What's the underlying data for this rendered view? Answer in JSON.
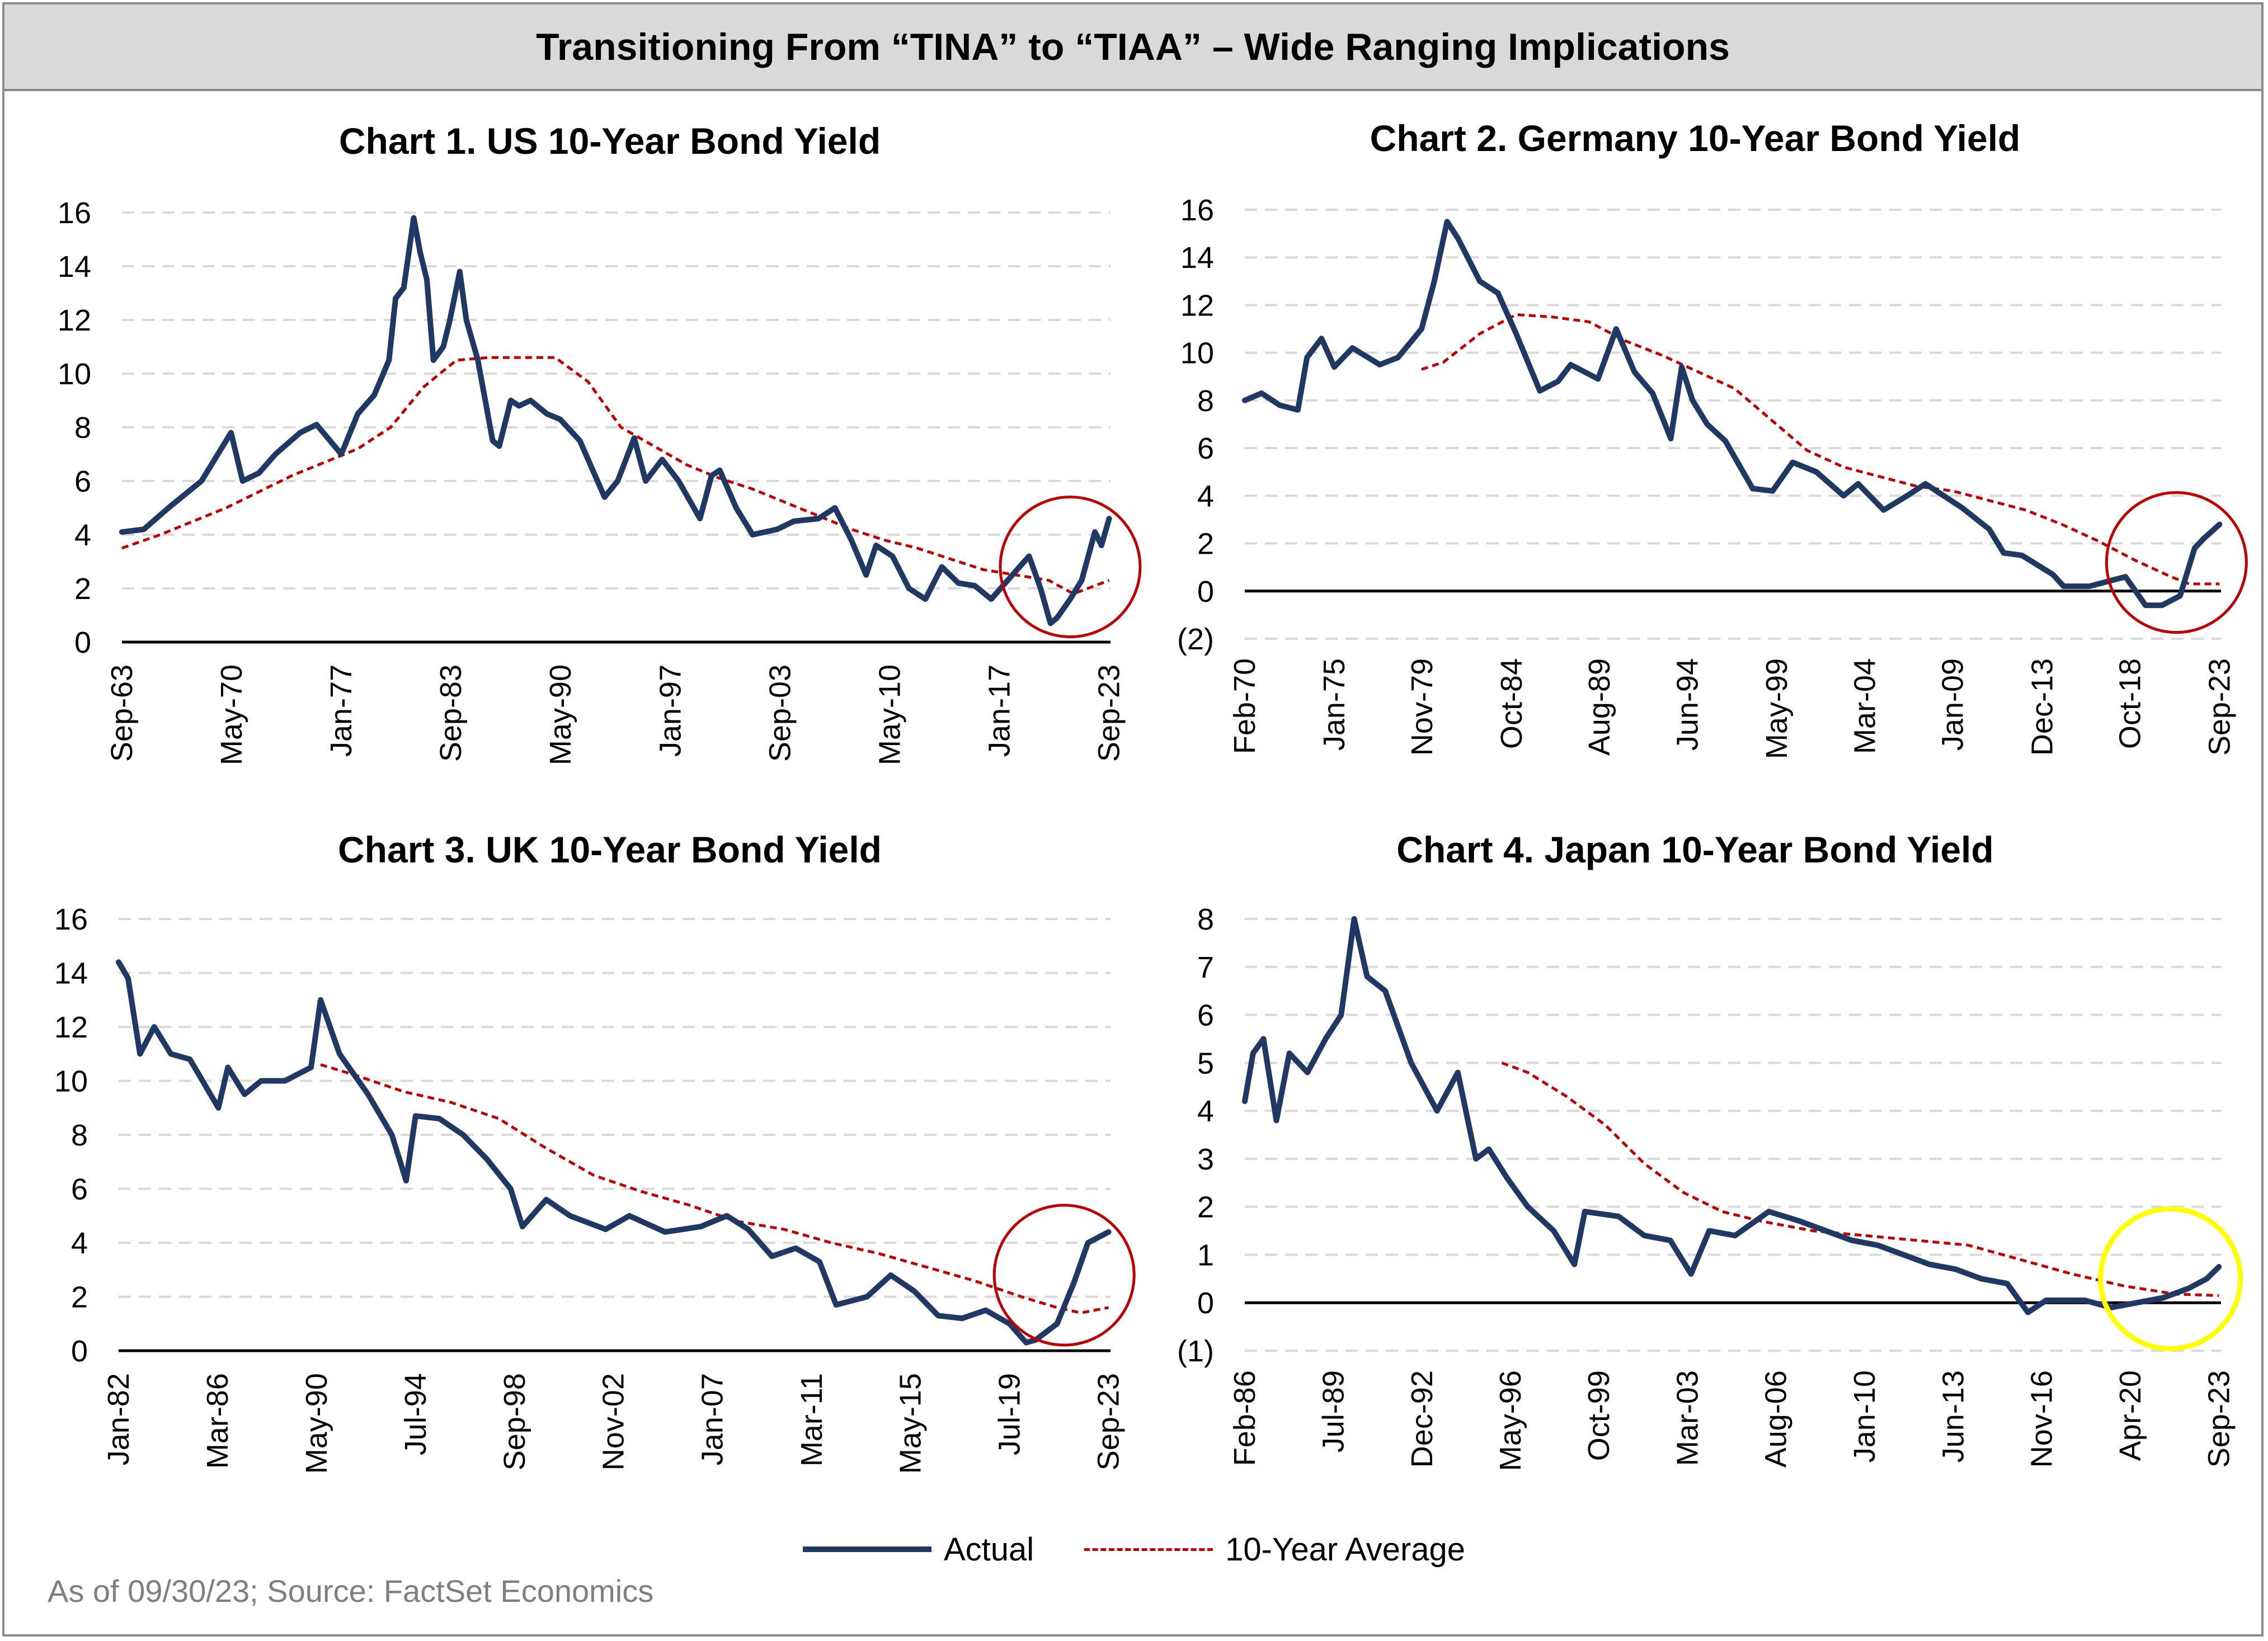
{
  "banner_title": "Transitioning From “TINA” to “TIAA” – Wide Ranging Implications",
  "legend": {
    "actual_label": "Actual",
    "average_label": "10-Year Average"
  },
  "footnote": "As of 09/30/23; Source: FactSet Economics",
  "colors": {
    "actual": "#1f3864",
    "average": "#c00000",
    "gridline": "#d9d9d9",
    "zero_line": "#000000",
    "highlight_red": "#c00000",
    "highlight_yellow": "#ffff00"
  },
  "chart_data": [
    {
      "id": "us",
      "type": "line",
      "title": "Chart 1. US 10-Year Bond Yield",
      "ylim": [
        0,
        16
      ],
      "yticks": [
        "0",
        "2",
        "4",
        "6",
        "8",
        "10",
        "12",
        "14",
        "16"
      ],
      "ytick_values": [
        0,
        2,
        4,
        6,
        8,
        10,
        12,
        14,
        16
      ],
      "xlim": [
        1963.67,
        2023.75
      ],
      "xtick_labels": [
        "Sep-63",
        "May-70",
        "Jan-77",
        "Sep-83",
        "May-90",
        "Jan-97",
        "Sep-03",
        "May-10",
        "Jan-17",
        "Sep-23"
      ],
      "xtick_values": [
        1963.67,
        1970.33,
        1977.0,
        1983.67,
        1990.33,
        1997.0,
        2003.67,
        2010.33,
        2017.0,
        2023.67
      ],
      "grid": true,
      "highlight": {
        "color": "red",
        "center": [
          2021.3,
          2.8
        ]
      },
      "series": [
        {
          "name": "Actual",
          "x": [
            1963.67,
            1965,
            1966.5,
            1967.5,
            1968.5,
            1969.5,
            1970.3,
            1971,
            1972,
            1973,
            1974.5,
            1975.5,
            1977,
            1978,
            1979,
            1979.9,
            1980.3,
            1980.8,
            1981.4,
            1981.8,
            1982.2,
            1982.6,
            1983.2,
            1983.6,
            1984.2,
            1984.6,
            1985.3,
            1986.2,
            1986.6,
            1987.3,
            1987.8,
            1988.5,
            1989.5,
            1990.3,
            1991.5,
            1993,
            1993.8,
            1994.8,
            1995.5,
            1996.5,
            1997.5,
            1998.8,
            1999.5,
            2000,
            2001,
            2002,
            2003.5,
            2004.5,
            2006,
            2007,
            2008,
            2008.9,
            2009.5,
            2010.5,
            2011.5,
            2012.5,
            2013.5,
            2014.5,
            2015.5,
            2016.5,
            2017.5,
            2018.8,
            2019.5,
            2020.1,
            2020.5,
            2021.3,
            2022.0,
            2022.8,
            2023.2,
            2023.67
          ],
          "y": [
            4.1,
            4.2,
            5.0,
            5.5,
            6.0,
            7.0,
            7.8,
            6.0,
            6.3,
            7.0,
            7.8,
            8.1,
            7.0,
            8.5,
            9.2,
            10.5,
            12.8,
            13.2,
            15.8,
            14.5,
            13.5,
            10.5,
            11.0,
            12.0,
            13.8,
            12.0,
            10.5,
            7.5,
            7.3,
            9.0,
            8.8,
            9.0,
            8.5,
            8.3,
            7.5,
            5.4,
            6.0,
            7.6,
            6.0,
            6.8,
            6.0,
            4.6,
            6.2,
            6.4,
            5.0,
            4.0,
            4.2,
            4.5,
            4.6,
            5.0,
            3.8,
            2.5,
            3.6,
            3.2,
            2.0,
            1.6,
            2.8,
            2.2,
            2.1,
            1.6,
            2.3,
            3.2,
            2.0,
            0.7,
            0.9,
            1.6,
            2.3,
            4.1,
            3.6,
            4.6
          ]
        },
        {
          "name": "10-Year Average",
          "x": [
            1963.67,
            1966,
            1970,
            1974,
            1978,
            1980,
            1982,
            1984,
            1986,
            1988,
            1990,
            1992,
            1994,
            1996,
            1998,
            2000,
            2002,
            2004,
            2006,
            2008,
            2010,
            2012,
            2014,
            2016,
            2018,
            2020,
            2021.5,
            2023.67
          ],
          "y": [
            3.5,
            4.0,
            5.0,
            6.2,
            7.2,
            8.0,
            9.5,
            10.5,
            10.6,
            10.6,
            10.6,
            9.7,
            8.0,
            7.3,
            6.6,
            6.1,
            5.7,
            5.2,
            4.7,
            4.2,
            3.8,
            3.5,
            3.1,
            2.7,
            2.5,
            2.3,
            1.8,
            2.3
          ]
        }
      ]
    },
    {
      "id": "germany",
      "type": "line",
      "title": "Chart 2. Germany 10-Year Bond Yield",
      "ylim": [
        -2,
        16
      ],
      "yticks": [
        "(2)",
        "0",
        "2",
        "4",
        "6",
        "8",
        "10",
        "12",
        "14",
        "16"
      ],
      "ytick_values": [
        -2,
        0,
        2,
        4,
        6,
        8,
        10,
        12,
        14,
        16
      ],
      "xlim": [
        1970.08,
        2023.75
      ],
      "xtick_labels": [
        "Feb-70",
        "Jan-75",
        "Nov-79",
        "Oct-84",
        "Aug-89",
        "Jun-94",
        "May-99",
        "Mar-04",
        "Jan-09",
        "Dec-13",
        "Oct-18",
        "Sep-23"
      ],
      "xtick_values": [
        1970.08,
        1975.0,
        1979.83,
        1984.75,
        1989.58,
        1994.42,
        1999.33,
        2004.17,
        2009.0,
        2013.92,
        2018.75,
        2023.67
      ],
      "grid": true,
      "zero_line": true,
      "highlight": {
        "color": "red",
        "center": [
          2021.3,
          1.2
        ]
      },
      "series": [
        {
          "name": "Actual",
          "x": [
            1970.08,
            1971,
            1972,
            1973,
            1973.5,
            1974.3,
            1975,
            1976,
            1977.5,
            1978.5,
            1979.8,
            1980.5,
            1981.2,
            1981.8,
            1983,
            1984,
            1985,
            1986.3,
            1987.3,
            1988,
            1989.5,
            1990.5,
            1991.5,
            1992.5,
            1993.5,
            1994.1,
            1994.7,
            1995.5,
            1996.5,
            1998,
            1999.1,
            2000.2,
            2001.5,
            2003,
            2003.8,
            2005.2,
            2006.5,
            2007.5,
            2008.3,
            2009.5,
            2011,
            2011.8,
            2012.8,
            2014.5,
            2015.1,
            2016.5,
            2017.5,
            2018.5,
            2019.6,
            2020.5,
            2021.5,
            2022.3,
            2022.8,
            2023.67
          ],
          "y": [
            8.0,
            8.3,
            7.8,
            7.6,
            9.8,
            10.6,
            9.4,
            10.2,
            9.5,
            9.8,
            11.0,
            13.0,
            15.5,
            14.8,
            13.0,
            12.5,
            10.8,
            8.4,
            8.8,
            9.5,
            8.9,
            11.0,
            9.2,
            8.3,
            6.4,
            9.4,
            8.0,
            7.0,
            6.3,
            4.3,
            4.2,
            5.4,
            5.0,
            4.0,
            4.5,
            3.4,
            4.0,
            4.5,
            4.1,
            3.5,
            2.6,
            1.6,
            1.5,
            0.7,
            0.2,
            0.2,
            0.4,
            0.6,
            -0.6,
            -0.6,
            -0.2,
            1.8,
            2.2,
            2.8
          ]
        },
        {
          "name": "10-Year Average",
          "x": [
            1979.8,
            1981,
            1983,
            1985,
            1987,
            1989,
            1991,
            1993,
            1995,
            1997,
            1999,
            2001,
            2003,
            2005,
            2007,
            2009,
            2011,
            2013,
            2015,
            2017,
            2019,
            2021,
            2022,
            2023.67
          ],
          "y": [
            9.3,
            9.6,
            10.8,
            11.6,
            11.5,
            11.3,
            10.5,
            9.9,
            9.2,
            8.5,
            7.2,
            5.9,
            5.2,
            4.8,
            4.4,
            4.2,
            3.8,
            3.4,
            2.8,
            2.1,
            1.3,
            0.6,
            0.3,
            0.3
          ]
        }
      ]
    },
    {
      "id": "uk",
      "type": "line",
      "title": "Chart 3. UK 10-Year Bond Yield",
      "ylim": [
        0,
        16
      ],
      "yticks": [
        "0",
        "2",
        "4",
        "6",
        "8",
        "10",
        "12",
        "14",
        "16"
      ],
      "ytick_values": [
        0,
        2,
        4,
        6,
        8,
        10,
        12,
        14,
        16
      ],
      "xlim": [
        1982.0,
        2023.75
      ],
      "xtick_labels": [
        "Jan-82",
        "Mar-86",
        "May-90",
        "Jul-94",
        "Sep-98",
        "Nov-02",
        "Jan-07",
        "Mar-11",
        "May-15",
        "Jul-19",
        "Sep-23"
      ],
      "xtick_values": [
        1982.0,
        1986.17,
        1990.33,
        1994.5,
        1998.67,
        2002.83,
        2007.0,
        2011.17,
        2015.33,
        2019.5,
        2023.67
      ],
      "grid": true,
      "highlight": {
        "color": "red",
        "center": [
          2021.8,
          2.8
        ]
      },
      "series": [
        {
          "name": "Actual",
          "x": [
            1982.0,
            1982.4,
            1982.9,
            1983.5,
            1984.2,
            1985,
            1986.2,
            1986.6,
            1987.3,
            1988,
            1989,
            1990.1,
            1990.5,
            1991.3,
            1992.5,
            1993.5,
            1994.1,
            1994.5,
            1995.5,
            1996.5,
            1997.5,
            1998.5,
            1999,
            2000,
            2001,
            2002.5,
            2003.5,
            2005,
            2006.5,
            2007.6,
            2008.5,
            2009.5,
            2010.5,
            2011.5,
            2012.2,
            2013.5,
            2014.5,
            2015.5,
            2016.5,
            2017.5,
            2018.5,
            2019.5,
            2020.2,
            2020.6,
            2021.5,
            2022.2,
            2022.8,
            2023.67
          ],
          "y": [
            14.4,
            13.8,
            11.0,
            12.0,
            11.0,
            10.8,
            9.0,
            10.5,
            9.5,
            10.0,
            10.0,
            10.5,
            13.0,
            11.0,
            9.5,
            8.0,
            6.3,
            8.7,
            8.6,
            8.0,
            7.1,
            6.0,
            4.6,
            5.6,
            5.0,
            4.5,
            5.0,
            4.4,
            4.6,
            5.0,
            4.5,
            3.5,
            3.8,
            3.3,
            1.7,
            2.0,
            2.8,
            2.2,
            1.3,
            1.2,
            1.5,
            1.0,
            0.3,
            0.4,
            1.0,
            2.5,
            4.0,
            4.4
          ]
        },
        {
          "name": "10-Year Average",
          "x": [
            1990.5,
            1992,
            1994,
            1996,
            1998,
            2000,
            2002,
            2004,
            2006,
            2008,
            2010,
            2012,
            2014,
            2016,
            2018,
            2020,
            2021.5,
            2022.5,
            2023.67
          ],
          "y": [
            10.6,
            10.2,
            9.6,
            9.2,
            8.6,
            7.5,
            6.5,
            5.9,
            5.4,
            4.8,
            4.5,
            4.0,
            3.6,
            3.1,
            2.6,
            2.0,
            1.6,
            1.4,
            1.6
          ]
        }
      ]
    },
    {
      "id": "japan",
      "type": "line",
      "title": "Chart 4. Japan 10-Year Bond Yield",
      "ylim": [
        -1,
        8
      ],
      "yticks": [
        "(1)",
        "0",
        "1",
        "2",
        "3",
        "4",
        "5",
        "6",
        "7",
        "8"
      ],
      "ytick_values": [
        -1,
        0,
        1,
        2,
        3,
        4,
        5,
        6,
        7,
        8
      ],
      "xlim": [
        1986.08,
        2023.75
      ],
      "xtick_labels": [
        "Feb-86",
        "Jul-89",
        "Dec-92",
        "May-96",
        "Oct-99",
        "Mar-03",
        "Aug-06",
        "Jan-10",
        "Jun-13",
        "Nov-16",
        "Apr-20",
        "Sep-23"
      ],
      "xtick_values": [
        1986.08,
        1989.5,
        1992.92,
        1996.33,
        1999.75,
        2003.17,
        2006.58,
        2010.0,
        2013.42,
        2016.83,
        2020.25,
        2023.67
      ],
      "grid": true,
      "zero_line": true,
      "highlight": {
        "color": "yellow",
        "center": [
          2021.8,
          0.5
        ]
      },
      "series": [
        {
          "name": "Actual",
          "x": [
            1986.08,
            1986.4,
            1986.8,
            1987.3,
            1987.8,
            1988.5,
            1989.2,
            1989.8,
            1990.3,
            1990.8,
            1991.5,
            1992.5,
            1993.5,
            1994.3,
            1995,
            1995.5,
            1996.2,
            1997,
            1998,
            1998.8,
            1999.2,
            2000.5,
            2001.5,
            2002.5,
            2003.3,
            2004,
            2005,
            2006.3,
            2007.5,
            2008.5,
            2009.5,
            2010.5,
            2011.5,
            2012.5,
            2013.5,
            2014.5,
            2015.5,
            2016.3,
            2017,
            2018.5,
            2019.5,
            2020.5,
            2021.5,
            2022.5,
            2023.2,
            2023.67
          ],
          "y": [
            4.2,
            5.2,
            5.5,
            3.8,
            5.2,
            4.8,
            5.5,
            6.0,
            8.0,
            6.8,
            6.5,
            5.0,
            4.0,
            4.8,
            3.0,
            3.2,
            2.6,
            2.0,
            1.5,
            0.8,
            1.9,
            1.8,
            1.4,
            1.3,
            0.6,
            1.5,
            1.4,
            1.9,
            1.7,
            1.5,
            1.3,
            1.2,
            1.0,
            0.8,
            0.7,
            0.5,
            0.4,
            -0.2,
            0.05,
            0.05,
            -0.1,
            0.0,
            0.1,
            0.3,
            0.5,
            0.75
          ]
        },
        {
          "name": "10-Year Average",
          "x": [
            1996.0,
            1997,
            1998.5,
            2000,
            2001.5,
            2003,
            2004.5,
            2006,
            2008,
            2010,
            2012,
            2014,
            2016,
            2018,
            2020,
            2022,
            2023.67
          ],
          "y": [
            5.0,
            4.8,
            4.3,
            3.7,
            2.9,
            2.3,
            1.9,
            1.7,
            1.5,
            1.4,
            1.3,
            1.2,
            0.9,
            0.6,
            0.35,
            0.18,
            0.15
          ]
        }
      ]
    }
  ]
}
